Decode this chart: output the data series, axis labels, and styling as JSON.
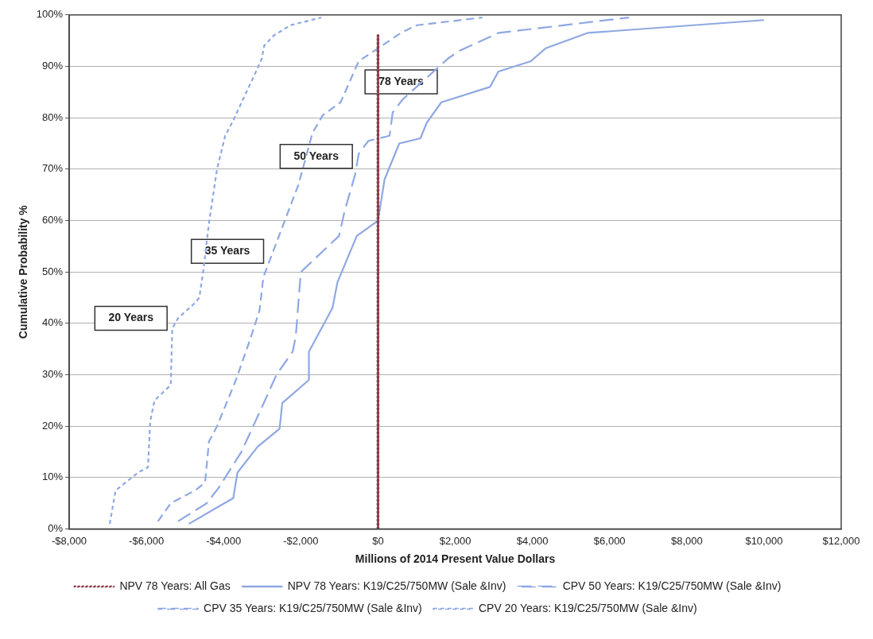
{
  "chart_data": {
    "type": "line",
    "xlabel": "Millions of 2014 Present Value Dollars",
    "ylabel": "Cumulative Probability %",
    "xlim": [
      -8000,
      12000
    ],
    "xticks": [
      {
        "value": -8000,
        "label": "-$8,000"
      },
      {
        "value": -6000,
        "label": "-$6,000"
      },
      {
        "value": -4000,
        "label": "-$4,000"
      },
      {
        "value": -2000,
        "label": "-$2,000"
      },
      {
        "value": 0,
        "label": "$0"
      },
      {
        "value": 2000,
        "label": "$2,000"
      },
      {
        "value": 4000,
        "label": "$4,000"
      },
      {
        "value": 6000,
        "label": "$6,000"
      },
      {
        "value": 8000,
        "label": "$8,000"
      },
      {
        "value": 10000,
        "label": "$10,000"
      },
      {
        "value": 12000,
        "label": "$12,000"
      }
    ],
    "ylim": [
      0,
      100
    ],
    "yticks": [
      {
        "value": 0,
        "label": "0%"
      },
      {
        "value": 10,
        "label": "10%"
      },
      {
        "value": 20,
        "label": "20%"
      },
      {
        "value": 30,
        "label": "30%"
      },
      {
        "value": 40,
        "label": "40%"
      },
      {
        "value": 50,
        "label": "50%"
      },
      {
        "value": 60,
        "label": "60%"
      },
      {
        "value": 70,
        "label": "70%"
      },
      {
        "value": 80,
        "label": "80%"
      },
      {
        "value": 90,
        "label": "90%"
      },
      {
        "value": 100,
        "label": "100%"
      }
    ],
    "grid": "y",
    "legend": "bottom",
    "marker": "none",
    "series": [
      {
        "name": "NPV 78 Years: All Gas",
        "color": "#8b3a4a",
        "line_style": "dotted",
        "x": [
          0,
          0
        ],
        "values": [
          0,
          96
        ]
      },
      {
        "name": "NPV 78 Years: K19/C25/750MW (Sale &Inv)",
        "color": "#8fa8e3",
        "line_style": "solid",
        "x": [
          -4900,
          -3750,
          -3640,
          -3120,
          -2550,
          -2480,
          -1790,
          -1790,
          -1180,
          -1050,
          -550,
          0,
          170,
          550,
          1100,
          1260,
          1640,
          2900,
          3120,
          3960,
          4340,
          5430,
          10000
        ],
        "values": [
          1,
          6,
          11,
          16,
          19.5,
          24.5,
          29,
          34.5,
          43,
          48,
          57,
          60,
          68,
          75,
          76,
          79,
          83,
          86,
          89,
          91,
          93.5,
          96.5,
          99
        ]
      },
      {
        "name": "CPV 50 Years: K19/C25/750MW (Sale &Inv)",
        "color": "#8fa8e3",
        "line_style": "dashed",
        "x": [
          -5180,
          -4440,
          -4130,
          -3960,
          -3540,
          -3050,
          -2630,
          -2210,
          -2130,
          -2000,
          -1010,
          -860,
          -590,
          -500,
          -250,
          300,
          380,
          630,
          1810,
          2100,
          3120,
          6500
        ],
        "values": [
          1.5,
          5,
          8,
          10,
          15,
          23,
          30,
          34.5,
          37.5,
          50,
          57,
          62,
          69,
          73,
          75.5,
          76.5,
          81,
          83.5,
          91.5,
          93,
          96.5,
          99.5
        ]
      },
      {
        "name": "CPV 35 Years: K19/C25/750MW (Sale &Inv)",
        "color": "#8fa8e3",
        "line_style": "dashed",
        "x": [
          -5700,
          -5370,
          -4740,
          -4480,
          -4380,
          -4170,
          -3680,
          -3330,
          -3070,
          -2970,
          -2060,
          -1700,
          -1430,
          -970,
          -500,
          0,
          590,
          1010,
          2700
        ],
        "values": [
          1.5,
          5,
          7.5,
          9,
          17,
          20,
          29,
          36.5,
          42.5,
          49,
          67,
          77,
          80.5,
          83,
          91,
          93.5,
          96.5,
          98,
          99.5
        ]
      },
      {
        "name": "CPV 20 Years: K19/C25/750MW (Sale &Inv)",
        "color": "#8fa8e3",
        "line_style": "dashed",
        "x": [
          -6950,
          -6800,
          -6210,
          -5960,
          -5900,
          -5790,
          -5370,
          -5330,
          -5180,
          -4740,
          -4630,
          -4530,
          -4380,
          -4170,
          -3960,
          -3750,
          -3160,
          -3010,
          -2950,
          -2700,
          -2270,
          -1470
        ],
        "values": [
          1,
          7.5,
          11,
          12,
          21,
          25,
          28,
          39,
          41,
          44,
          45,
          50,
          59.5,
          70,
          76.5,
          79.5,
          89,
          91.5,
          94,
          96,
          98,
          99.5
        ]
      }
    ],
    "annotations": [
      "78 Years",
      "50 Years",
      "35 Years",
      "20 Years"
    ]
  }
}
